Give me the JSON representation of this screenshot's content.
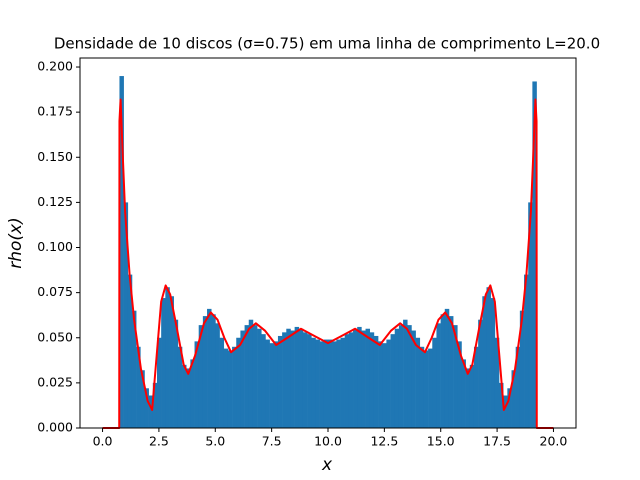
{
  "chart_data": {
    "type": "histogram",
    "title": "Densidade de 10 discos (σ=0.75) em uma linha de comprimento L=20.0",
    "xlabel": "x",
    "ylabel": "rho(x)",
    "bins": [
      0.75,
      0.935,
      1.12,
      1.305,
      1.49,
      1.675,
      1.86,
      2.045,
      2.23,
      2.415,
      2.6,
      2.785,
      2.97,
      3.155,
      3.34,
      3.525,
      3.71,
      3.895,
      4.08,
      4.265,
      4.45,
      4.635,
      4.82,
      5.005,
      5.19,
      5.375,
      5.56,
      5.745,
      5.93,
      6.115,
      6.3,
      6.485,
      6.67,
      6.855,
      7.04,
      7.225,
      7.41,
      7.595,
      7.78,
      7.965,
      8.15,
      8.335,
      8.52,
      8.705,
      8.89,
      9.075,
      9.26,
      9.445,
      9.63,
      9.815,
      10.0,
      10.185,
      10.37,
      10.555,
      10.74,
      10.925,
      11.11,
      11.295,
      11.48,
      11.665,
      11.85,
      12.035,
      12.22,
      12.405,
      12.59,
      12.775,
      12.96,
      13.145,
      13.33,
      13.515,
      13.7,
      13.885,
      14.07,
      14.255,
      14.44,
      14.625,
      14.81,
      14.995,
      15.18,
      15.365,
      15.55,
      15.735,
      15.92,
      16.105,
      16.29,
      16.475,
      16.66,
      16.845,
      17.03,
      17.215,
      17.4,
      17.585,
      17.77,
      17.955,
      18.14,
      18.325,
      18.51,
      18.695,
      18.88,
      19.065,
      19.25
    ],
    "values": [
      0.195,
      0.125,
      0.085,
      0.065,
      0.045,
      0.032,
      0.022,
      0.018,
      0.025,
      0.05,
      0.072,
      0.078,
      0.073,
      0.06,
      0.045,
      0.035,
      0.033,
      0.038,
      0.048,
      0.057,
      0.062,
      0.066,
      0.063,
      0.058,
      0.05,
      0.044,
      0.043,
      0.045,
      0.05,
      0.054,
      0.057,
      0.06,
      0.057,
      0.055,
      0.052,
      0.049,
      0.047,
      0.048,
      0.051,
      0.053,
      0.055,
      0.054,
      0.056,
      0.055,
      0.053,
      0.052,
      0.05,
      0.049,
      0.048,
      0.049,
      0.049,
      0.048,
      0.049,
      0.05,
      0.052,
      0.053,
      0.055,
      0.056,
      0.054,
      0.055,
      0.053,
      0.051,
      0.048,
      0.047,
      0.049,
      0.052,
      0.055,
      0.057,
      0.06,
      0.057,
      0.054,
      0.05,
      0.045,
      0.043,
      0.044,
      0.05,
      0.058,
      0.063,
      0.066,
      0.062,
      0.057,
      0.048,
      0.038,
      0.033,
      0.035,
      0.045,
      0.06,
      0.073,
      0.078,
      0.072,
      0.05,
      0.025,
      0.018,
      0.022,
      0.032,
      0.045,
      0.065,
      0.085,
      0.125,
      0.192
    ],
    "color": "#1f77b4",
    "overlay": {
      "type": "line",
      "color": "#ff0000",
      "x": [
        0,
        0.74,
        0.75,
        0.8,
        0.9,
        1.0,
        1.2,
        1.4,
        1.7,
        2.0,
        2.2,
        2.4,
        2.6,
        2.8,
        3.0,
        3.3,
        3.6,
        3.8,
        4.1,
        4.5,
        4.8,
        5.1,
        5.4,
        5.7,
        6.1,
        6.5,
        6.8,
        7.2,
        7.7,
        8.2,
        8.8,
        9.4,
        10.0,
        10.6,
        11.2,
        11.8,
        12.3,
        12.8,
        13.2,
        13.5,
        13.9,
        14.3,
        14.6,
        14.9,
        15.2,
        15.5,
        15.9,
        16.2,
        16.4,
        16.7,
        17.0,
        17.2,
        17.4,
        17.6,
        17.8,
        18.0,
        18.3,
        18.6,
        18.8,
        19.0,
        19.1,
        19.2,
        19.25,
        19.26,
        20
      ],
      "values": [
        0,
        0,
        0.17,
        0.182,
        0.15,
        0.12,
        0.085,
        0.06,
        0.033,
        0.015,
        0.01,
        0.04,
        0.07,
        0.079,
        0.074,
        0.055,
        0.035,
        0.03,
        0.04,
        0.058,
        0.064,
        0.06,
        0.05,
        0.042,
        0.046,
        0.055,
        0.058,
        0.054,
        0.046,
        0.05,
        0.055,
        0.051,
        0.047,
        0.051,
        0.055,
        0.05,
        0.046,
        0.054,
        0.058,
        0.055,
        0.046,
        0.042,
        0.05,
        0.06,
        0.064,
        0.058,
        0.04,
        0.03,
        0.035,
        0.055,
        0.074,
        0.079,
        0.07,
        0.04,
        0.01,
        0.015,
        0.033,
        0.06,
        0.085,
        0.12,
        0.15,
        0.182,
        0.17,
        0,
        0
      ]
    },
    "xlim": [
      -1,
      21
    ],
    "ylim": [
      0,
      0.205
    ],
    "xticks": [
      {
        "value": 0,
        "label": "0.0"
      },
      {
        "value": 2.5,
        "label": "2.5"
      },
      {
        "value": 5,
        "label": "5.0"
      },
      {
        "value": 7.5,
        "label": "7.5"
      },
      {
        "value": 10,
        "label": "10.0"
      },
      {
        "value": 12.5,
        "label": "12.5"
      },
      {
        "value": 15,
        "label": "15.0"
      },
      {
        "value": 17.5,
        "label": "17.5"
      },
      {
        "value": 20,
        "label": "20.0"
      }
    ],
    "yticks": [
      {
        "value": 0,
        "label": "0.000"
      },
      {
        "value": 0.025,
        "label": "0.025"
      },
      {
        "value": 0.05,
        "label": "0.050"
      },
      {
        "value": 0.075,
        "label": "0.075"
      },
      {
        "value": 0.1,
        "label": "0.100"
      },
      {
        "value": 0.125,
        "label": "0.125"
      },
      {
        "value": 0.15,
        "label": "0.150"
      },
      {
        "value": 0.175,
        "label": "0.175"
      },
      {
        "value": 0.2,
        "label": "0.200"
      }
    ]
  }
}
